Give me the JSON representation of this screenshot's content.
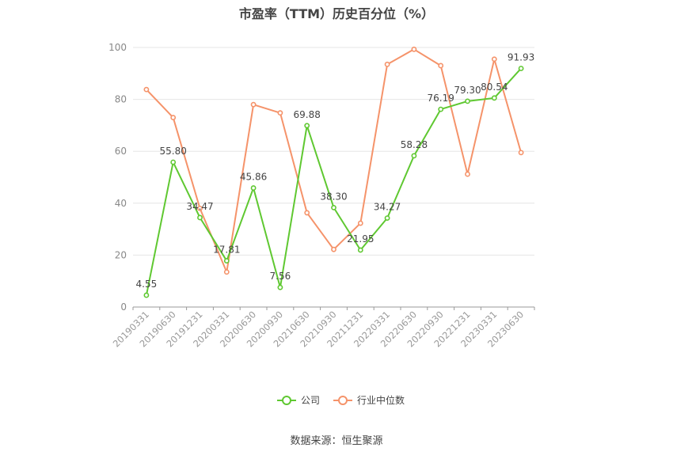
{
  "chart_data": {
    "type": "line",
    "title": "市盈率（TTM）历史百分位（%）",
    "source": "数据来源：恒生聚源",
    "categories": [
      "20190331",
      "20190630",
      "20191231",
      "20200331",
      "20200630",
      "20200930",
      "20210630",
      "20210930",
      "20211231",
      "20220331",
      "20220630",
      "20220930",
      "20221231",
      "20230331",
      "20230630"
    ],
    "ylim": [
      0,
      100
    ],
    "yticks": [
      0,
      20,
      40,
      60,
      80,
      100
    ],
    "grid": true,
    "legend_position": "bottom",
    "series": [
      {
        "name": "公司",
        "color": "#5fc831",
        "values": [
          4.55,
          55.8,
          34.47,
          17.81,
          45.86,
          7.56,
          69.88,
          38.3,
          21.95,
          34.27,
          58.28,
          76.19,
          79.3,
          80.54,
          91.93
        ],
        "labels": [
          "4.55",
          "55.80",
          "34.47",
          "17.81",
          "45.86",
          "7.56",
          "69.88",
          "38.30",
          "21.95",
          "34.27",
          "58.28",
          "76.19",
          "79.30",
          "80.54",
          "91.93"
        ]
      },
      {
        "name": "行业中位数",
        "color": "#f5936a",
        "values": [
          83.8,
          73.0,
          38.0,
          13.5,
          78.0,
          74.8,
          36.3,
          22.2,
          32.3,
          93.5,
          99.3,
          93.0,
          51.2,
          95.5,
          59.5
        ]
      }
    ]
  }
}
